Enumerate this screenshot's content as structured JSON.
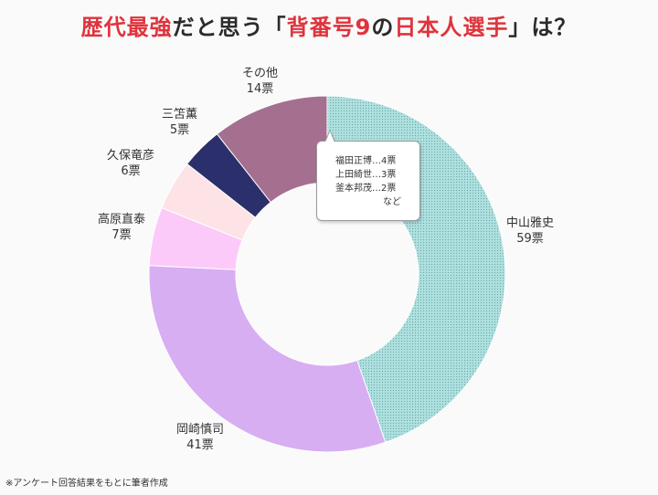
{
  "title": {
    "part1": "歴代最強",
    "part2": "だと思う「",
    "part3": "背番号9",
    "part4": "の",
    "part5": "日本人選手",
    "part6": "」は？"
  },
  "chart_data": {
    "type": "pie",
    "donut": true,
    "unit": "票",
    "slices": [
      {
        "label": "中山雅史",
        "value": 59,
        "value_text": "59票",
        "color": "#aee0df",
        "pattern": "dots"
      },
      {
        "label": "岡崎慎司",
        "value": 41,
        "value_text": "41票",
        "color": "#d8aef3"
      },
      {
        "label": "高原直泰",
        "value": 7,
        "value_text": "7票",
        "color": "#fccaf9"
      },
      {
        "label": "久保竜彦",
        "value": 6,
        "value_text": "6票",
        "color": "#fde3e6"
      },
      {
        "label": "三笘薫",
        "value": 5,
        "value_text": "5票",
        "color": "#2b2f6b"
      },
      {
        "label": "その他",
        "value": 14,
        "value_text": "14票",
        "color": "#a57090"
      }
    ],
    "other_breakdown": [
      "福田正博…4票",
      "上田綺世…3票",
      "釜本邦茂…2票"
    ],
    "other_breakdown_suffix": "など"
  },
  "footnote": "※アンケート回答結果をもとに筆者作成"
}
